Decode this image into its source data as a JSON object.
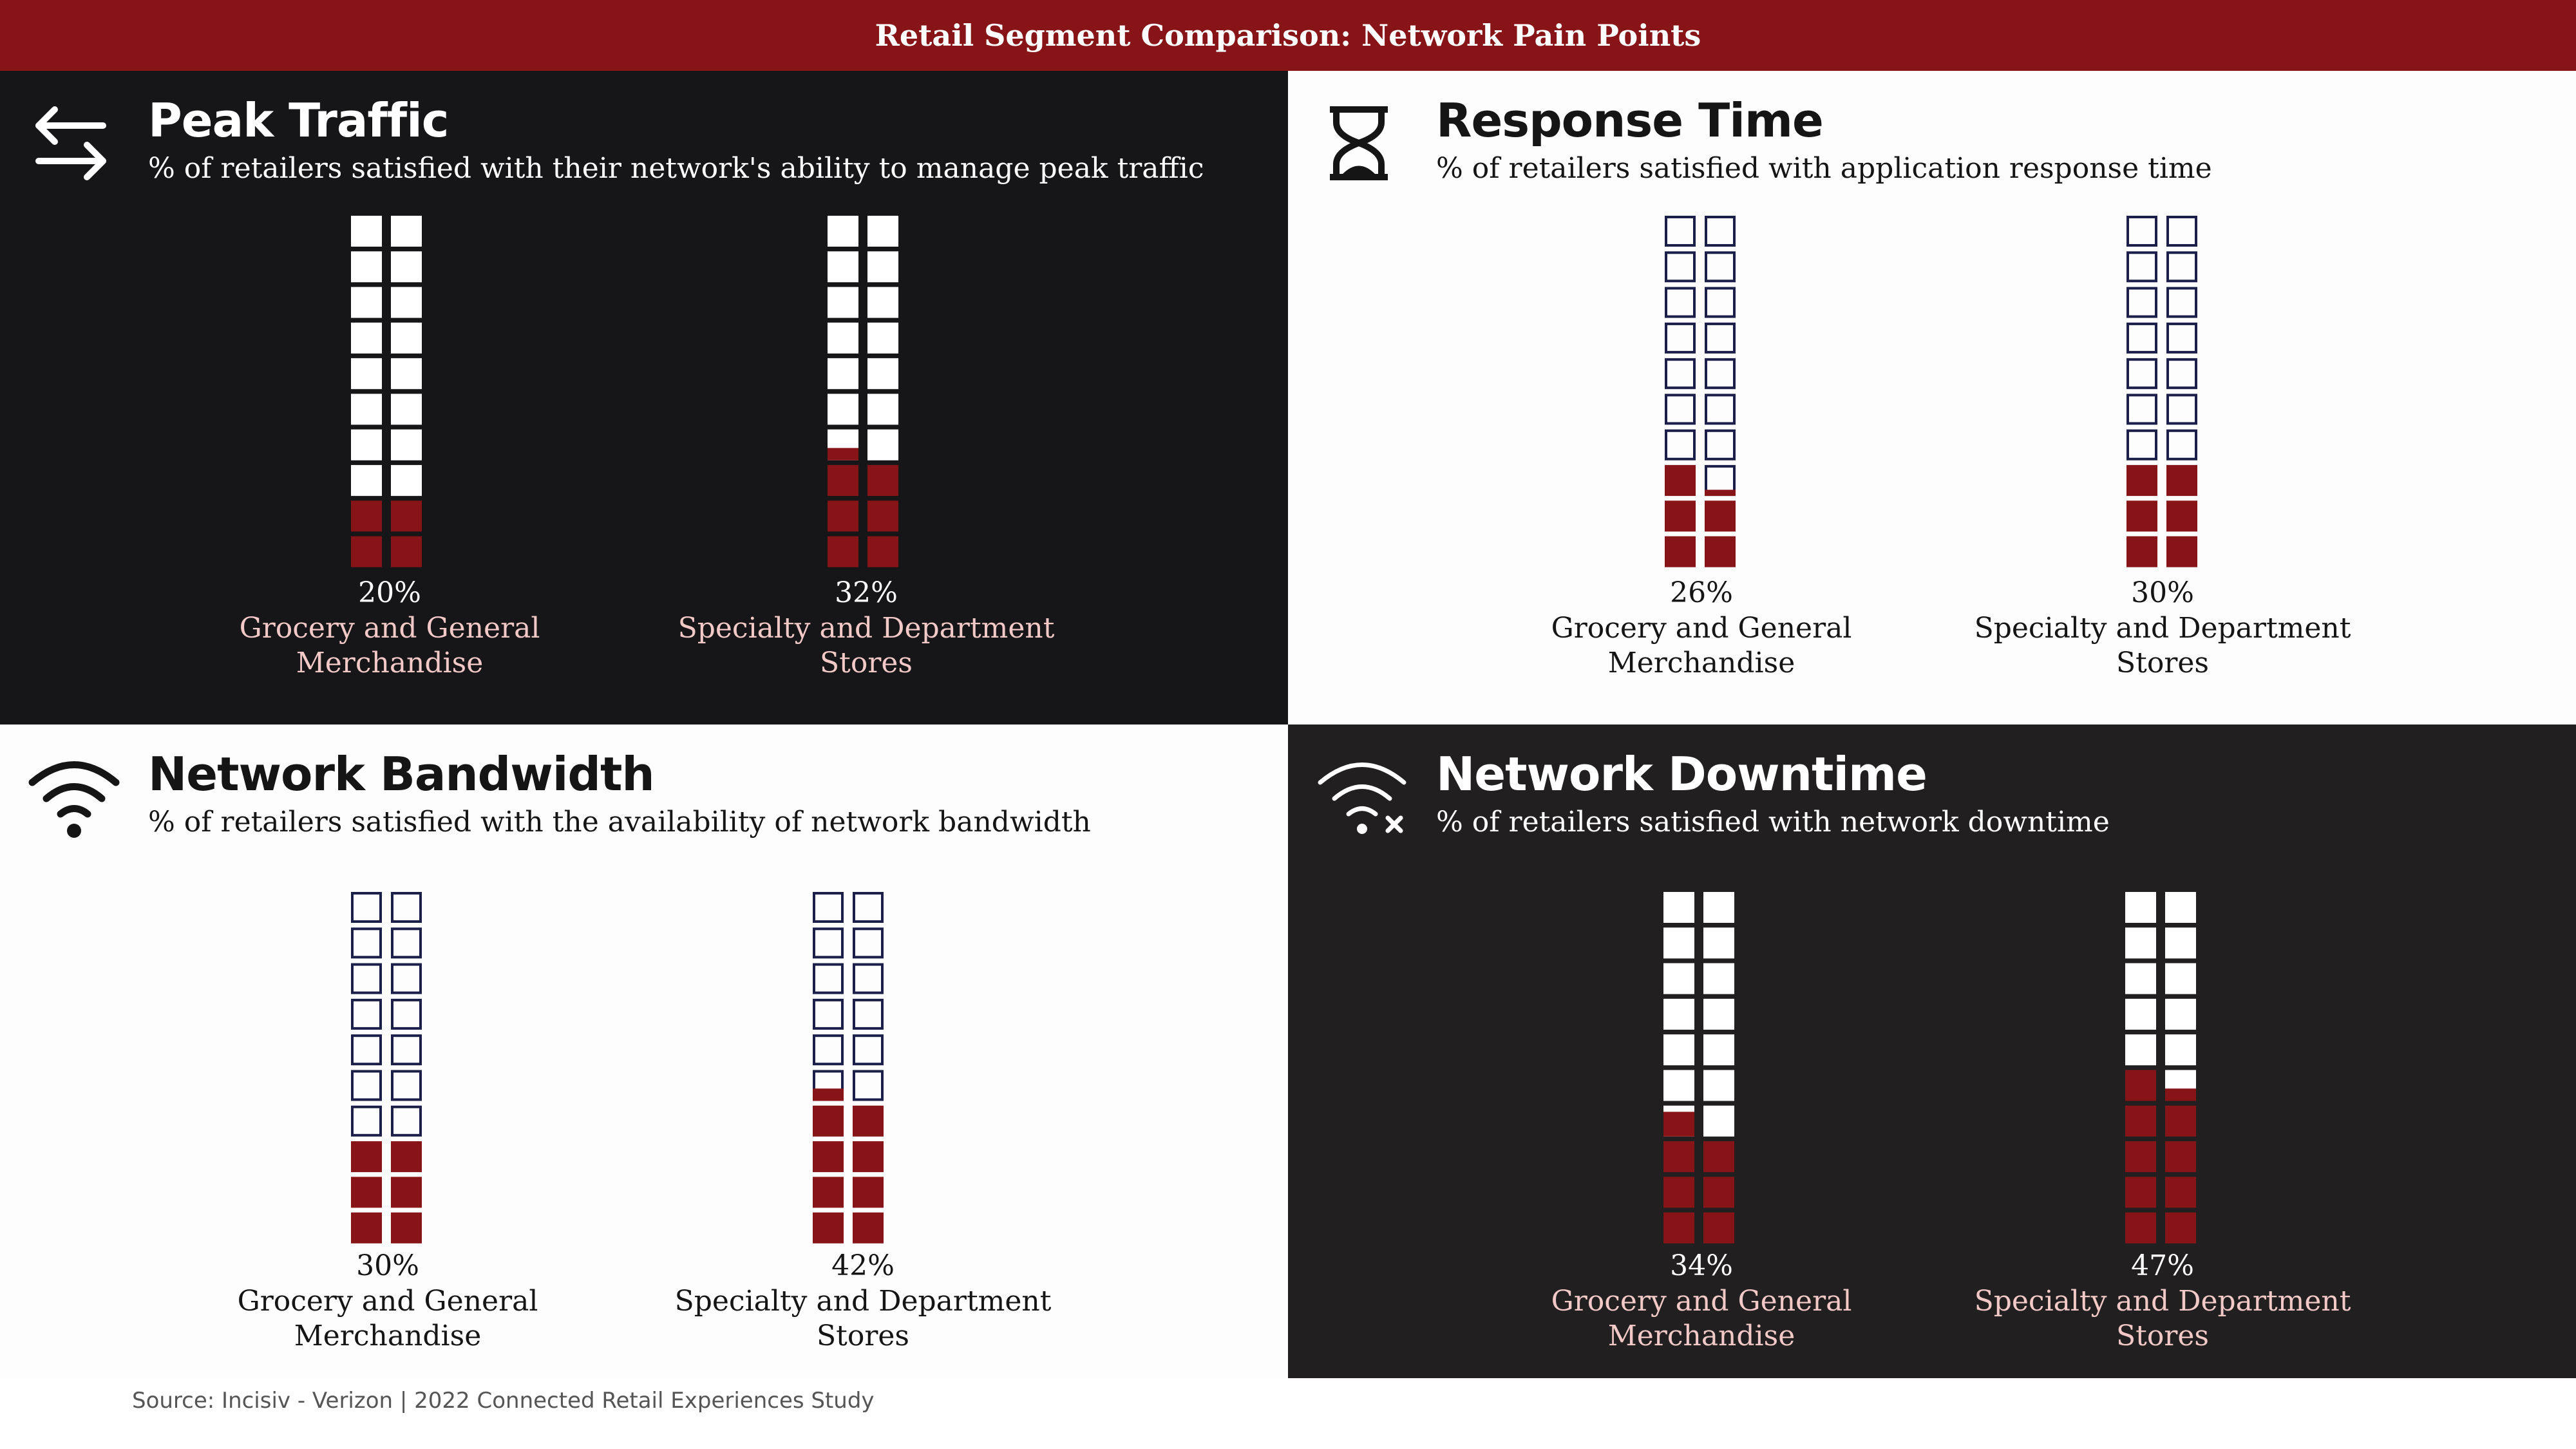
{
  "header": {
    "title": "Retail Segment Comparison: Network Pain Points"
  },
  "colors": {
    "filled": "#871518",
    "dark_bg": "#161517",
    "empty_on_light": "#1b1f4a"
  },
  "chart_data": [
    {
      "type": "waffle",
      "title": "Peak Traffic",
      "subtitle": "% of retailers satisfied with their network's ability to manage peak traffic",
      "icon": "arrows-exchange-icon",
      "categories": [
        "Grocery and General Merchandise",
        "Specialty and Department Stores"
      ],
      "values": [
        20,
        32
      ],
      "value_labels": [
        "20%",
        "32%"
      ],
      "units": 20
    },
    {
      "type": "waffle",
      "title": "Response Time",
      "subtitle": "% of retailers satisfied with application response time",
      "icon": "hourglass-icon",
      "categories": [
        "Grocery and General Merchandise",
        "Specialty and Department Stores"
      ],
      "values": [
        26,
        30
      ],
      "value_labels": [
        "26%",
        "30%"
      ],
      "units": 20
    },
    {
      "type": "waffle",
      "title": "Network Bandwidth",
      "subtitle": "% of retailers satisfied with the availability of network bandwidth",
      "icon": "wifi-icon",
      "categories": [
        "Grocery and General Merchandise",
        "Specialty and Department Stores"
      ],
      "values": [
        30,
        42
      ],
      "value_labels": [
        "30%",
        "42%"
      ],
      "units": 20
    },
    {
      "type": "waffle",
      "title": "Network Downtime",
      "subtitle": "% of retailers satisfied with network downtime",
      "icon": "wifi-off-icon",
      "categories": [
        "Grocery and General Merchandise",
        "Specialty and Department Stores"
      ],
      "values": [
        34,
        47
      ],
      "value_labels": [
        "34%",
        "47%"
      ],
      "units": 20
    }
  ],
  "footer": {
    "source": "Source: Incisiv - Verizon | 2022 Connected Retail Experiences Study"
  }
}
